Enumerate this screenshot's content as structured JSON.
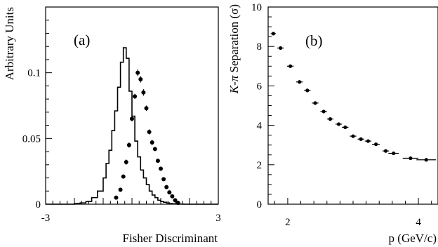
{
  "chart_data": [
    {
      "type": "scatter",
      "panel_label": "(a)",
      "xlabel": "Fisher Discriminant",
      "ylabel": "Arbitrary Units",
      "xlim": [
        -3,
        3
      ],
      "ylim": [
        0,
        0.15
      ],
      "x_ticks": [
        -3,
        3
      ],
      "x_tick_labels": [
        "-3",
        "3"
      ],
      "y_ticks": [
        0,
        0.05,
        0.1
      ],
      "y_tick_labels": [
        "0",
        "0.05",
        "0.1"
      ],
      "grid": false,
      "series": [
        {
          "style": "histogram",
          "bin_edges": [
            -3.0,
            -2.8,
            -2.6,
            -2.4,
            -2.2,
            -2.0,
            -1.8,
            -1.6,
            -1.4,
            -1.2,
            -1.0,
            -0.9,
            -0.8,
            -0.7,
            -0.6,
            -0.5,
            -0.4,
            -0.3,
            -0.2,
            -0.1,
            0.0,
            0.1,
            0.2,
            0.3,
            0.4,
            0.5,
            0.6,
            0.7,
            0.8,
            0.9,
            1.0,
            1.1,
            1.2,
            1.3,
            1.4,
            1.5,
            1.6,
            1.8,
            2.0,
            3.0
          ],
          "values": [
            0,
            0,
            0,
            0,
            0,
            0.0005,
            0.001,
            0.002,
            0.005,
            0.01,
            0.02,
            0.031,
            0.041,
            0.056,
            0.071,
            0.089,
            0.108,
            0.119,
            0.111,
            0.086,
            0.067,
            0.048,
            0.036,
            0.026,
            0.02,
            0.015,
            0.01,
            0.007,
            0.005,
            0.003,
            0.002,
            0.0015,
            0.001,
            0.0005,
            0.0003,
            0.0002,
            0.0001,
            0,
            0
          ]
        },
        {
          "style": "points",
          "x": [
            -0.55,
            -0.4,
            -0.3,
            -0.2,
            -0.1,
            0.0,
            0.1,
            0.2,
            0.3,
            0.4,
            0.5,
            0.6,
            0.7,
            0.8,
            0.9,
            1.0,
            1.1,
            1.2,
            1.3,
            1.4,
            1.5,
            1.6
          ],
          "y": [
            0.005,
            0.011,
            0.021,
            0.032,
            0.045,
            0.065,
            0.082,
            0.1,
            0.095,
            0.085,
            0.073,
            0.055,
            0.047,
            0.042,
            0.033,
            0.027,
            0.019,
            0.013,
            0.009,
            0.006,
            0.003,
            0.001
          ],
          "err": [
            0.001,
            0.0015,
            0.0015,
            0.002,
            0.002,
            0.002,
            0.002,
            0.0025,
            0.0025,
            0.0025,
            0.002,
            0.002,
            0.002,
            0.0015,
            0.0015,
            0.0015,
            0.001,
            0.001,
            0.001,
            0.0008,
            0.0006,
            0.0005
          ]
        }
      ]
    },
    {
      "type": "scatter",
      "panel_label": "(b)",
      "xlabel": "p (GeV/c)",
      "ylabel": "K-π Separation (σ)",
      "ylabel_parts": [
        "K",
        "-",
        "π",
        " Separation (",
        "σ",
        ")"
      ],
      "xlim": [
        1.7,
        4.3
      ],
      "ylim": [
        0,
        10
      ],
      "x_ticks": [
        2,
        4
      ],
      "x_tick_labels": [
        "2",
        "4"
      ],
      "y_ticks": [
        0,
        2,
        4,
        6,
        8,
        10
      ],
      "y_tick_labels": [
        "0",
        "2",
        "4",
        "6",
        "8",
        "10"
      ],
      "grid": false,
      "series": [
        {
          "style": "points",
          "x": [
            1.78,
            1.89,
            2.04,
            2.18,
            2.3,
            2.42,
            2.55,
            2.65,
            2.78,
            2.88,
            3.0,
            3.12,
            3.23,
            3.35,
            3.5,
            3.62,
            3.88,
            4.12
          ],
          "y": [
            8.65,
            7.92,
            7.0,
            6.2,
            5.77,
            5.13,
            4.7,
            4.32,
            4.06,
            3.9,
            3.45,
            3.3,
            3.2,
            3.04,
            2.7,
            2.58,
            2.33,
            2.25
          ],
          "xerr": [
            0.04,
            0.05,
            0.05,
            0.05,
            0.05,
            0.05,
            0.05,
            0.05,
            0.05,
            0.05,
            0.05,
            0.05,
            0.05,
            0.06,
            0.05,
            0.08,
            0.12,
            0.15
          ]
        }
      ]
    }
  ]
}
